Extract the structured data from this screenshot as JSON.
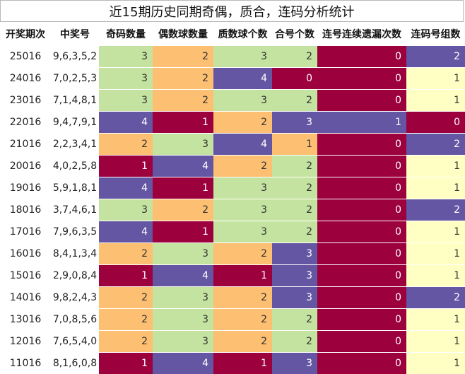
{
  "title": "近15期历史同期奇偶，质合，连码分析统计",
  "headers": [
    "开奖期次",
    "中奖号",
    "奇码数量",
    "偶数球数量",
    "质数球个数",
    "合号个数",
    "连号连续遗漏次数",
    "连码号组数"
  ],
  "colors": {
    "green": "#c5e3a0",
    "orange": "#fdbf72",
    "purple": "#6456a3",
    "crimson": "#9c003d",
    "yellow": "#ffffc3"
  },
  "rows": [
    {
      "period": "25016",
      "numbers": "9,6,3,5,2",
      "odd": 3,
      "even": 2,
      "prime": 3,
      "composite": 2,
      "consecutive_miss": 0,
      "consecutive_groups": 2
    },
    {
      "period": "24016",
      "numbers": "7,0,2,5,3",
      "odd": 3,
      "even": 2,
      "prime": 4,
      "composite": 0,
      "consecutive_miss": 0,
      "consecutive_groups": 1
    },
    {
      "period": "23016",
      "numbers": "7,1,4,8,1",
      "odd": 3,
      "even": 2,
      "prime": 3,
      "composite": 2,
      "consecutive_miss": 0,
      "consecutive_groups": 1
    },
    {
      "period": "22016",
      "numbers": "9,4,7,9,1",
      "odd": 4,
      "even": 1,
      "prime": 2,
      "composite": 3,
      "consecutive_miss": 1,
      "consecutive_groups": 0
    },
    {
      "period": "21016",
      "numbers": "2,2,3,4,1",
      "odd": 2,
      "even": 3,
      "prime": 4,
      "composite": 1,
      "consecutive_miss": 0,
      "consecutive_groups": 2
    },
    {
      "period": "20016",
      "numbers": "4,0,2,5,8",
      "odd": 1,
      "even": 4,
      "prime": 2,
      "composite": 2,
      "consecutive_miss": 0,
      "consecutive_groups": 1
    },
    {
      "period": "19016",
      "numbers": "5,9,1,8,1",
      "odd": 4,
      "even": 1,
      "prime": 3,
      "composite": 2,
      "consecutive_miss": 0,
      "consecutive_groups": 1
    },
    {
      "period": "18016",
      "numbers": "3,7,4,6,1",
      "odd": 3,
      "even": 2,
      "prime": 3,
      "composite": 2,
      "consecutive_miss": 0,
      "consecutive_groups": 2
    },
    {
      "period": "17016",
      "numbers": "7,9,6,3,5",
      "odd": 4,
      "even": 1,
      "prime": 3,
      "composite": 2,
      "consecutive_miss": 0,
      "consecutive_groups": 1
    },
    {
      "period": "16016",
      "numbers": "8,4,1,3,4",
      "odd": 2,
      "even": 3,
      "prime": 2,
      "composite": 3,
      "consecutive_miss": 0,
      "consecutive_groups": 1
    },
    {
      "period": "15016",
      "numbers": "2,9,0,8,4",
      "odd": 1,
      "even": 4,
      "prime": 1,
      "composite": 3,
      "consecutive_miss": 0,
      "consecutive_groups": 1
    },
    {
      "period": "14016",
      "numbers": "9,8,2,4,3",
      "odd": 2,
      "even": 3,
      "prime": 2,
      "composite": 3,
      "consecutive_miss": 0,
      "consecutive_groups": 2
    },
    {
      "period": "13016",
      "numbers": "7,0,8,5,6",
      "odd": 2,
      "even": 3,
      "prime": 2,
      "composite": 2,
      "consecutive_miss": 0,
      "consecutive_groups": 1
    },
    {
      "period": "12016",
      "numbers": "7,6,5,4,0",
      "odd": 2,
      "even": 3,
      "prime": 2,
      "composite": 2,
      "consecutive_miss": 0,
      "consecutive_groups": 1
    },
    {
      "period": "11016",
      "numbers": "8,1,6,0,8",
      "odd": 1,
      "even": 4,
      "prime": 1,
      "composite": 3,
      "consecutive_miss": 0,
      "consecutive_groups": 1
    }
  ]
}
